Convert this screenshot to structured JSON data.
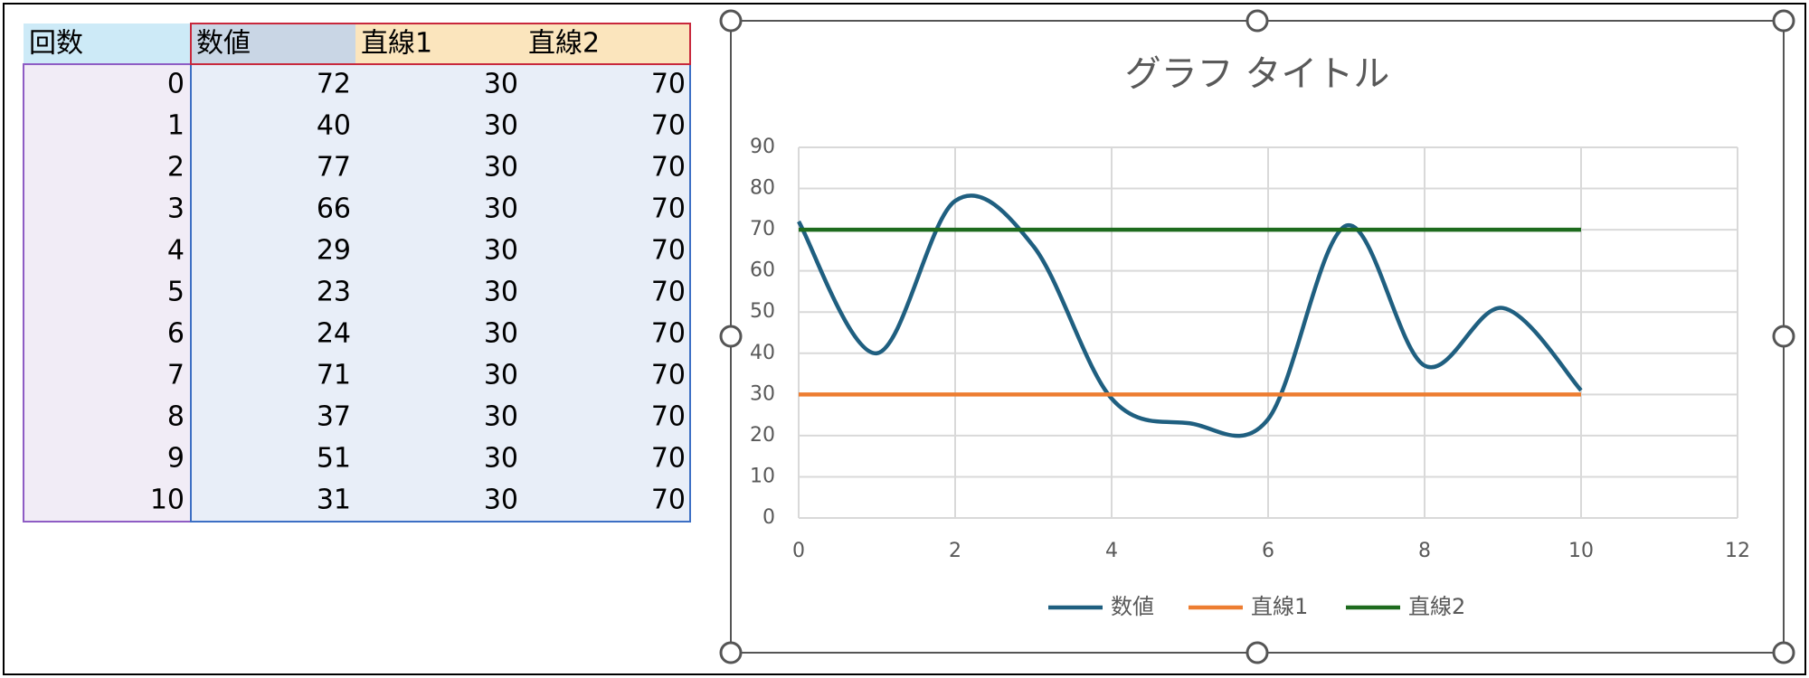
{
  "table": {
    "index_header": "回数"
  },
  "chart_data": {
    "type": "line",
    "title": "グラフ タイトル",
    "x": [
      0,
      1,
      2,
      3,
      4,
      5,
      6,
      7,
      8,
      9,
      10
    ],
    "series": [
      {
        "name": "数値",
        "color": "#1f5f80",
        "smooth": true,
        "values": [
          72,
          40,
          77,
          66,
          29,
          23,
          24,
          71,
          37,
          51,
          31
        ]
      },
      {
        "name": "直線1",
        "color": "#ed7d31",
        "smooth": false,
        "values": [
          30,
          30,
          30,
          30,
          30,
          30,
          30,
          30,
          30,
          30,
          30
        ]
      },
      {
        "name": "直線2",
        "color": "#1e6b1e",
        "smooth": false,
        "values": [
          70,
          70,
          70,
          70,
          70,
          70,
          70,
          70,
          70,
          70,
          70
        ]
      }
    ],
    "xlim": [
      0,
      12
    ],
    "xticks": [
      0,
      2,
      4,
      6,
      8,
      10,
      12
    ],
    "ylim": [
      0,
      90
    ],
    "yticks": [
      0,
      10,
      20,
      30,
      40,
      50,
      60,
      70,
      80,
      90
    ],
    "grid": true,
    "legend": "bottom"
  }
}
